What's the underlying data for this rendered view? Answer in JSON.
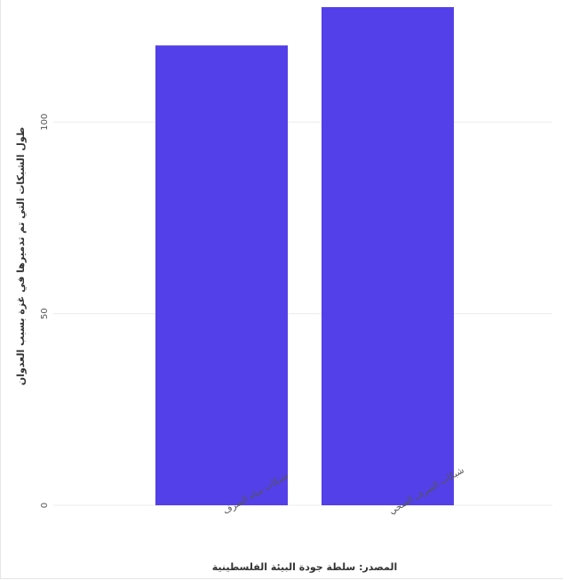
{
  "chart_data": {
    "type": "bar",
    "categories": [
      "شبكات مياه الصرف",
      "شبكات الصرف الصحي"
    ],
    "values": [
      120,
      130
    ],
    "xlabel": "المصدر: سلطة جودة البيئة الفلسطينية",
    "ylabel": "طول الشبكات التي تم تدميرها في غزة بسبب العدوان",
    "ylim": [
      0,
      130
    ],
    "yticks": [
      0,
      50,
      100
    ],
    "grid": true,
    "bar_color": "#5340e8",
    "grid_color": "#ebebeb"
  }
}
